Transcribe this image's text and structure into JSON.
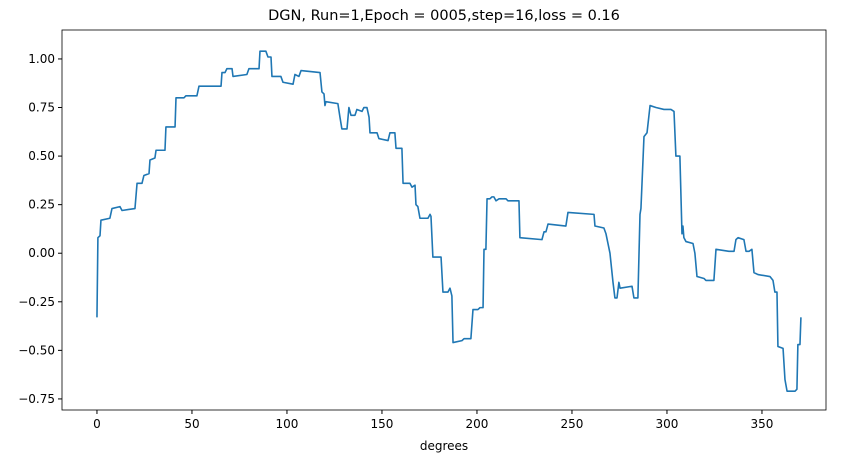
{
  "chart_data": {
    "type": "line",
    "title": "DGN, Run=1,Epoch = 0005,step=16,loss = 0.16",
    "x_label": "degrees",
    "x": [
      0,
      0.5,
      1.6,
      2.1,
      6.8,
      7.9,
      12.1,
      13.2,
      20,
      21.1,
      23.7,
      24.7,
      27.4,
      27.9,
      30.5,
      31.1,
      35.8,
      36.3,
      41.1,
      41.6,
      45.8,
      46.8,
      52.6,
      53.7,
      65.3,
      65.8,
      67.4,
      68.4,
      71.1,
      71.6,
      78.9,
      80,
      85.3,
      85.8,
      88.9,
      90,
      91.6,
      92.1,
      96.8,
      97.9,
      103.2,
      104.2,
      106.3,
      107.4,
      117.4,
      118.4,
      119.5,
      120,
      120.5,
      126.8,
      127.9,
      128.9,
      131.6,
      132.6,
      133.7,
      135.8,
      136.8,
      139.5,
      140.5,
      142.1,
      143.2,
      143.7,
      147.4,
      148.4,
      153.2,
      154.2,
      156.8,
      157.4,
      160.5,
      161.1,
      164.7,
      165.8,
      167.4,
      167.9,
      168.9,
      170,
      174.2,
      175.3,
      175.8,
      176.8,
      181.1,
      182.1,
      184.7,
      185.8,
      186.8,
      187.4,
      192.1,
      193.2,
      196.8,
      197.9,
      200.5,
      201.6,
      203.2,
      203.7,
      204.7,
      205.3,
      206.8,
      207.9,
      208.9,
      210,
      211.6,
      215.3,
      216.3,
      221.1,
      222.1,
      222.6,
      234.2,
      235.3,
      236.3,
      237.4,
      246.8,
      247.9,
      261.6,
      262.1,
      266.8,
      267.9,
      270,
      271.6,
      272.6,
      273.7,
      274.7,
      275.3,
      281.6,
      282.6,
      284.7,
      285.8,
      286.3,
      287.9,
      289.5,
      291.1,
      294.2,
      298.4,
      302.1,
      303.7,
      304.7,
      306.8,
      307.9,
      308.4,
      308.9,
      310,
      313.7,
      314.7,
      315.8,
      319.5,
      320.5,
      324.7,
      325.8,
      332.6,
      335.3,
      336.3,
      337.4,
      340.5,
      341.6,
      343.2,
      344.7,
      345.8,
      347.9,
      354.2,
      355.8,
      356.8,
      357.9,
      358.4,
      361.1,
      362.1,
      363.2,
      367.4,
      368.4,
      368.9,
      370,
      370.5
    ],
    "series": [
      {
        "color": "#1f77b4",
        "values": [
          -0.33,
          0.08,
          0.09,
          0.17,
          0.18,
          0.23,
          0.24,
          0.22,
          0.23,
          0.36,
          0.36,
          0.4,
          0.41,
          0.48,
          0.49,
          0.53,
          0.53,
          0.65,
          0.65,
          0.8,
          0.8,
          0.81,
          0.81,
          0.86,
          0.86,
          0.93,
          0.93,
          0.95,
          0.95,
          0.91,
          0.92,
          0.95,
          0.95,
          1.04,
          1.04,
          1.01,
          1.01,
          0.91,
          0.91,
          0.88,
          0.87,
          0.92,
          0.91,
          0.94,
          0.93,
          0.83,
          0.82,
          0.76,
          0.78,
          0.77,
          0.7,
          0.64,
          0.64,
          0.75,
          0.71,
          0.71,
          0.74,
          0.73,
          0.75,
          0.75,
          0.7,
          0.62,
          0.62,
          0.59,
          0.58,
          0.62,
          0.62,
          0.54,
          0.54,
          0.36,
          0.36,
          0.34,
          0.35,
          0.25,
          0.24,
          0.18,
          0.18,
          0.2,
          0.19,
          -0.02,
          -0.02,
          -0.2,
          -0.2,
          -0.18,
          -0.22,
          -0.46,
          -0.45,
          -0.44,
          -0.44,
          -0.29,
          -0.29,
          -0.28,
          -0.28,
          0.02,
          0.02,
          0.28,
          0.28,
          0.29,
          0.29,
          0.27,
          0.28,
          0.28,
          0.27,
          0.27,
          0.27,
          0.08,
          0.07,
          0.11,
          0.11,
          0.15,
          0.14,
          0.21,
          0.2,
          0.14,
          0.13,
          0.1,
          0.0,
          -0.15,
          -0.23,
          -0.23,
          -0.15,
          -0.18,
          -0.17,
          -0.23,
          -0.23,
          0.2,
          0.23,
          0.6,
          0.62,
          0.76,
          0.75,
          0.74,
          0.74,
          0.73,
          0.5,
          0.5,
          0.1,
          0.14,
          0.08,
          0.06,
          0.05,
          0.0,
          -0.12,
          -0.13,
          -0.14,
          -0.14,
          0.02,
          0.01,
          0.01,
          0.07,
          0.08,
          0.07,
          0.01,
          0.01,
          0.02,
          -0.1,
          -0.11,
          -0.12,
          -0.14,
          -0.2,
          -0.2,
          -0.48,
          -0.49,
          -0.65,
          -0.71,
          -0.71,
          -0.7,
          -0.47,
          -0.47,
          -0.33
        ]
      }
    ],
    "xlim": [
      -18.4,
      383.7
    ],
    "ylim": [
      -0.807,
      1.149
    ],
    "xticks": [
      0,
      50,
      100,
      150,
      200,
      250,
      300,
      350
    ],
    "yticks": [
      {
        "value": -0.75,
        "label": "−0.75"
      },
      {
        "value": -0.5,
        "label": "−0.50"
      },
      {
        "value": -0.25,
        "label": "−0.25"
      },
      {
        "value": 0,
        "label": "0.00"
      },
      {
        "value": 0.25,
        "label": "0.25"
      },
      {
        "value": 0.5,
        "label": "0.50"
      },
      {
        "value": 0.75,
        "label": "0.75"
      },
      {
        "value": 1,
        "label": "1.00"
      }
    ]
  }
}
